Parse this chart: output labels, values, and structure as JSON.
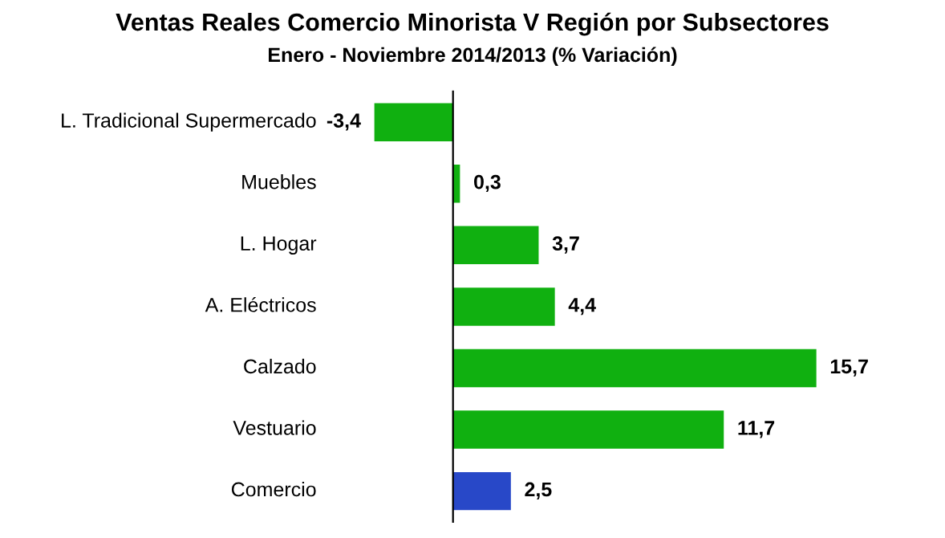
{
  "chart_data": {
    "type": "bar",
    "orientation": "horizontal",
    "title": "Ventas Reales Comercio Minorista V Región por Subsectores",
    "subtitle": "Enero - Noviembre 2014/2013 (% Variación)",
    "categories": [
      "L. Tradicional Supermercado",
      "Muebles",
      "L. Hogar",
      "A. Eléctricos",
      "Calzado",
      "Vestuario",
      "Comercio"
    ],
    "values": [
      -3.4,
      0.3,
      3.7,
      4.4,
      15.7,
      11.7,
      2.5
    ],
    "value_labels": [
      "-3,4",
      "0,3",
      "3,7",
      "4,4",
      "15,7",
      "11,7",
      "2,5"
    ],
    "colors": [
      "#10b010",
      "#10b010",
      "#10b010",
      "#10b010",
      "#10b010",
      "#10b010",
      "#2848c8"
    ],
    "tick_labels": "y"
  }
}
